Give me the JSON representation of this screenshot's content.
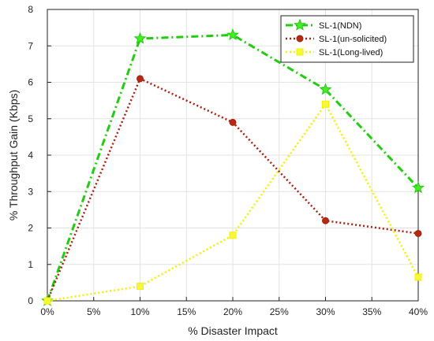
{
  "chart_data": {
    "type": "line",
    "xlabel": "% Disaster Impact",
    "ylabel": "% Throughput Gain (Kbps)",
    "x": [
      0,
      10,
      20,
      30,
      40
    ],
    "x_tick_values": [
      0,
      5,
      10,
      15,
      20,
      25,
      30,
      35,
      40
    ],
    "x_tick_labels": [
      "0%",
      "5%",
      "10%",
      "15%",
      "20%",
      "25%",
      "30%",
      "35%",
      "40%"
    ],
    "xlim": [
      0,
      40
    ],
    "y_tick_values": [
      0,
      1,
      2,
      3,
      4,
      5,
      6,
      7,
      8
    ],
    "y_tick_labels": [
      "0",
      "1",
      "2",
      "3",
      "4",
      "5",
      "6",
      "7",
      "8"
    ],
    "ylim": [
      0,
      8
    ],
    "grid": true,
    "legend_position": "top-right",
    "series": [
      {
        "name": "SL-1(NDN)",
        "values": [
          0,
          7.2,
          7.3,
          5.8,
          3.1
        ],
        "color": "#22cc11",
        "marker_color": "#44ee22",
        "marker": "star",
        "line_style": "dash-dot"
      },
      {
        "name": "SL-1(un-solicited)",
        "values": [
          0,
          6.1,
          4.9,
          2.2,
          1.85
        ],
        "color": "#aa1f0f",
        "marker_color": "#b32a14",
        "marker": "circle",
        "line_style": "dotted"
      },
      {
        "name": "SL-1(Long-lived)",
        "values": [
          0,
          0.4,
          1.8,
          5.4,
          0.65
        ],
        "color": "#f2f200",
        "marker_color": "#f7f73c",
        "marker": "square",
        "line_style": "dotted"
      }
    ]
  }
}
